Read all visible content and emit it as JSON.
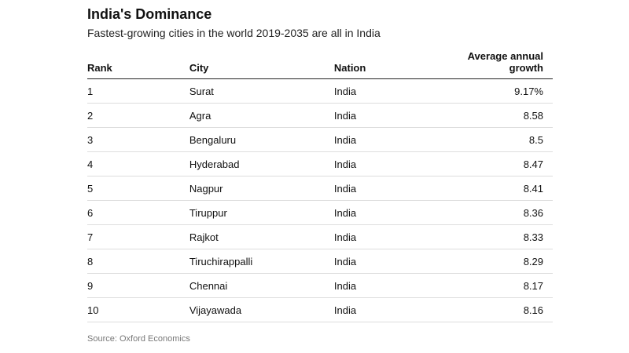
{
  "header": {
    "title": "India's Dominance",
    "subtitle": "Fastest-growing cities in the world 2019-2035 are all in India"
  },
  "table": {
    "columns": [
      "Rank",
      "City",
      "Nation",
      "Average annual growth"
    ],
    "rows": [
      [
        "1",
        "Surat",
        "India",
        "9.17%"
      ],
      [
        "2",
        "Agra",
        "India",
        "8.58"
      ],
      [
        "3",
        "Bengaluru",
        "India",
        "8.5"
      ],
      [
        "4",
        "Hyderabad",
        "India",
        "8.47"
      ],
      [
        "5",
        "Nagpur",
        "India",
        "8.41"
      ],
      [
        "6",
        "Tiruppur",
        "India",
        "8.36"
      ],
      [
        "7",
        "Rajkot",
        "India",
        "8.33"
      ],
      [
        "8",
        "Tiruchirappalli",
        "India",
        "8.29"
      ],
      [
        "9",
        "Chennai",
        "India",
        "8.17"
      ],
      [
        "10",
        "Vijayawada",
        "India",
        "8.16"
      ]
    ]
  },
  "footer": {
    "source": "Source: Oxford Economics"
  }
}
